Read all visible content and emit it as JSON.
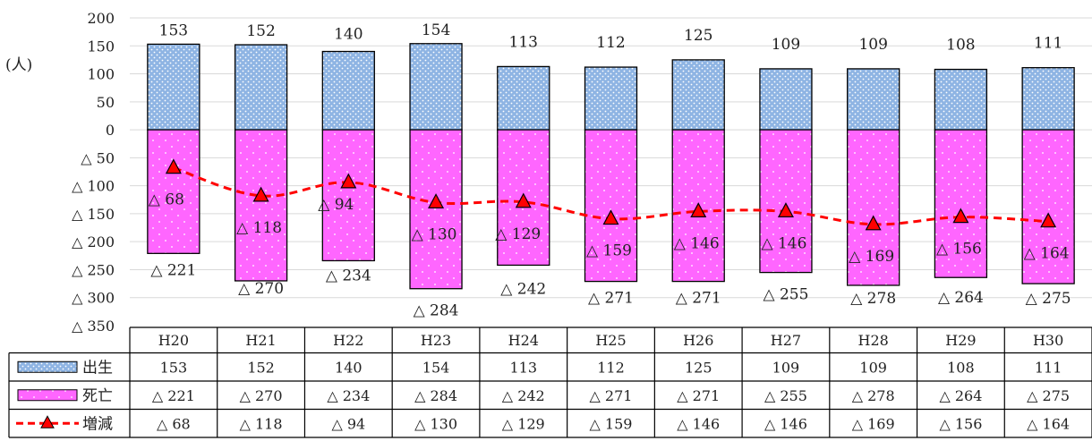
{
  "chart_data": {
    "type": "bar",
    "ylabel": "(人)",
    "ylim": [
      -350,
      200
    ],
    "yticks": [
      200,
      150,
      100,
      50,
      0,
      -50,
      -100,
      -150,
      -200,
      -250,
      -300,
      -350
    ],
    "ytick_labels": [
      "200",
      "150",
      "100",
      "50",
      "0",
      "△ 50",
      "△ 100",
      "△ 150",
      "△ 200",
      "△ 250",
      "△ 300",
      "△ 350"
    ],
    "categories": [
      "H20",
      "H21",
      "H22",
      "H23",
      "H24",
      "H25",
      "H26",
      "H27",
      "H28",
      "H29",
      "H30"
    ],
    "grid": true,
    "series": [
      {
        "name": "出生",
        "kind": "bar",
        "color": "#8eb4e3",
        "values": [
          153,
          152,
          140,
          154,
          113,
          112,
          125,
          109,
          109,
          108,
          111
        ],
        "labels": [
          "153",
          "152",
          "140",
          "154",
          "113",
          "112",
          "125",
          "109",
          "109",
          "108",
          "111"
        ]
      },
      {
        "name": "死亡",
        "kind": "bar",
        "color": "#ff66ff",
        "values": [
          -221,
          -270,
          -234,
          -284,
          -242,
          -271,
          -271,
          -255,
          -278,
          -264,
          -275
        ],
        "labels": [
          "△ 221",
          "△ 270",
          "△ 234",
          "△ 284",
          "△ 242",
          "△ 271",
          "△ 271",
          "△ 255",
          "△ 278",
          "△ 264",
          "△ 275"
        ]
      },
      {
        "name": "増減",
        "kind": "line",
        "color": "#ff0000",
        "values": [
          -68,
          -118,
          -94,
          -130,
          -129,
          -159,
          -146,
          -146,
          -169,
          -156,
          -164
        ],
        "labels": [
          "△ 68",
          "△ 118",
          "△ 94",
          "△ 130",
          "△ 129",
          "△ 159",
          "△ 146",
          "△ 146",
          "△ 169",
          "△ 156",
          "△ 164"
        ]
      }
    ]
  }
}
